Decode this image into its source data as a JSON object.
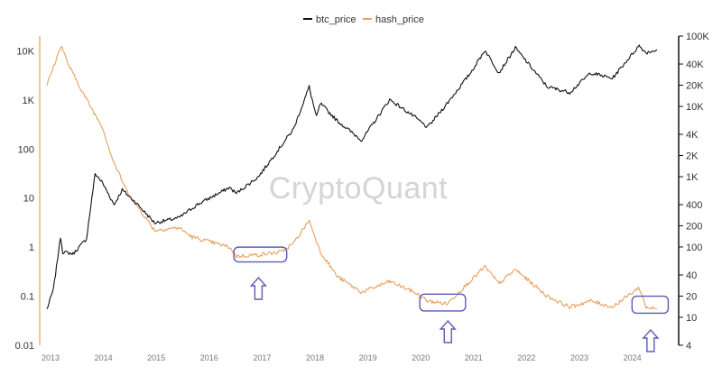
{
  "watermark": "CryptoQuant",
  "colors": {
    "btc": "#111111",
    "hash": "#e8a060",
    "annotation": "#5b5bb5",
    "left_axis": "#f0b27a"
  },
  "chart_data": {
    "type": "line",
    "title": "",
    "xlabel": "",
    "ylabel": "",
    "legend": {
      "position": "top-center",
      "entries": [
        "btc_price",
        "hash_price"
      ]
    },
    "grid": false,
    "x_ticks": [
      "2013",
      "2014",
      "2015",
      "2016",
      "2017",
      "2018",
      "2019",
      "2020",
      "2021",
      "2022",
      "2023",
      "2024"
    ],
    "left_axis": {
      "scale": "log",
      "range": [
        0.01,
        20000
      ],
      "ticks": [
        {
          "value": 10000,
          "label": "10K"
        },
        {
          "value": 1000,
          "label": "1K"
        },
        {
          "value": 100,
          "label": "100"
        },
        {
          "value": 10,
          "label": "10"
        },
        {
          "value": 1,
          "label": "1"
        },
        {
          "value": 0.1,
          "label": "0.1"
        },
        {
          "value": 0.01,
          "label": "0.01"
        }
      ]
    },
    "right_axis": {
      "scale": "log",
      "range": [
        4,
        100000
      ],
      "ticks": [
        {
          "value": 100000,
          "label": "100K"
        },
        {
          "value": 40000,
          "label": "40K"
        },
        {
          "value": 20000,
          "label": "20K"
        },
        {
          "value": 10000,
          "label": "10K"
        },
        {
          "value": 4000,
          "label": "4K"
        },
        {
          "value": 2000,
          "label": "2K"
        },
        {
          "value": 1000,
          "label": "1K"
        },
        {
          "value": 400,
          "label": "400"
        },
        {
          "value": 200,
          "label": "200"
        },
        {
          "value": 100,
          "label": "100"
        },
        {
          "value": 40,
          "label": "40"
        },
        {
          "value": 20,
          "label": "20"
        },
        {
          "value": 10,
          "label": "10"
        },
        {
          "value": 4,
          "label": "4"
        }
      ]
    },
    "series": [
      {
        "name": "btc_price",
        "axis": "right",
        "points": [
          [
            "2013-01-01",
            13
          ],
          [
            "2013-02-15",
            25
          ],
          [
            "2013-04-05",
            140
          ],
          [
            "2013-04-20",
            85
          ],
          [
            "2013-07-01",
            80
          ],
          [
            "2013-10-01",
            130
          ],
          [
            "2013-11-30",
            1100
          ],
          [
            "2014-01-15",
            850
          ],
          [
            "2014-04-10",
            400
          ],
          [
            "2014-06-05",
            650
          ],
          [
            "2014-10-01",
            380
          ],
          [
            "2015-01-15",
            220
          ],
          [
            "2015-07-01",
            260
          ],
          [
            "2015-11-05",
            400
          ],
          [
            "2016-06-15",
            700
          ],
          [
            "2016-08-01",
            580
          ],
          [
            "2017-01-01",
            1000
          ],
          [
            "2017-06-10",
            2800
          ],
          [
            "2017-09-01",
            4800
          ],
          [
            "2017-12-17",
            19000
          ],
          [
            "2018-02-05",
            7000
          ],
          [
            "2018-03-05",
            11000
          ],
          [
            "2018-06-30",
            6200
          ],
          [
            "2018-12-15",
            3300
          ],
          [
            "2019-06-26",
            12500
          ],
          [
            "2019-12-15",
            7100
          ],
          [
            "2020-03-13",
            5000
          ],
          [
            "2020-07-27",
            11000
          ],
          [
            "2020-12-31",
            29000
          ],
          [
            "2021-04-14",
            63000
          ],
          [
            "2021-07-20",
            30000
          ],
          [
            "2021-11-10",
            68000
          ],
          [
            "2022-06-18",
            19000
          ],
          [
            "2022-11-21",
            15800
          ],
          [
            "2023-04-14",
            30000
          ],
          [
            "2023-09-11",
            25000
          ],
          [
            "2024-03-14",
            73000
          ],
          [
            "2024-05-01",
            58000
          ],
          [
            "2024-07-15",
            64000
          ]
        ]
      },
      {
        "name": "hash_price",
        "axis": "left",
        "points": [
          [
            "2013-01-01",
            2000
          ],
          [
            "2013-04-10",
            13000
          ],
          [
            "2013-06-01",
            5000
          ],
          [
            "2013-09-01",
            1500
          ],
          [
            "2013-11-15",
            600
          ],
          [
            "2014-01-15",
            300
          ],
          [
            "2014-04-01",
            60
          ],
          [
            "2014-07-01",
            15
          ],
          [
            "2014-10-01",
            6
          ],
          [
            "2015-01-15",
            2.2
          ],
          [
            "2015-07-01",
            2.5
          ],
          [
            "2015-10-01",
            1.6
          ],
          [
            "2016-06-15",
            1.0
          ],
          [
            "2016-08-01",
            0.65
          ],
          [
            "2017-01-01",
            0.7
          ],
          [
            "2017-06-10",
            0.8
          ],
          [
            "2017-09-01",
            1.2
          ],
          [
            "2017-12-17",
            3.5
          ],
          [
            "2018-03-05",
            0.8
          ],
          [
            "2018-06-30",
            0.25
          ],
          [
            "2018-12-15",
            0.12
          ],
          [
            "2019-06-26",
            0.2
          ],
          [
            "2019-12-15",
            0.12
          ],
          [
            "2020-03-13",
            0.08
          ],
          [
            "2020-07-27",
            0.07
          ],
          [
            "2020-12-31",
            0.2
          ],
          [
            "2021-04-14",
            0.4
          ],
          [
            "2021-07-20",
            0.18
          ],
          [
            "2021-11-10",
            0.35
          ],
          [
            "2022-06-18",
            0.1
          ],
          [
            "2022-11-21",
            0.06
          ],
          [
            "2023-04-14",
            0.08
          ],
          [
            "2023-09-11",
            0.06
          ],
          [
            "2024-03-14",
            0.15
          ],
          [
            "2024-05-01",
            0.06
          ],
          [
            "2024-07-15",
            0.055
          ]
        ]
      }
    ],
    "annotations": [
      {
        "type": "box",
        "x_range": [
          "2016-07-15",
          "2017-07-15"
        ],
        "y_range": [
          0.5,
          1.0
        ],
        "axis": "left"
      },
      {
        "type": "up-arrow",
        "x": "2017-01-01"
      },
      {
        "type": "box",
        "x_range": [
          "2020-01-20",
          "2020-12-01"
        ],
        "y_range": [
          0.05,
          0.11
        ],
        "axis": "left"
      },
      {
        "type": "box",
        "x_range": [
          "2024-01-25",
          "2024-10-01"
        ],
        "y_range": [
          0.045,
          0.1
        ],
        "axis": "left"
      },
      {
        "type": "up-arrow",
        "x": "2020-08-01"
      },
      {
        "type": "up-arrow",
        "x": "2024-06-01"
      }
    ]
  }
}
